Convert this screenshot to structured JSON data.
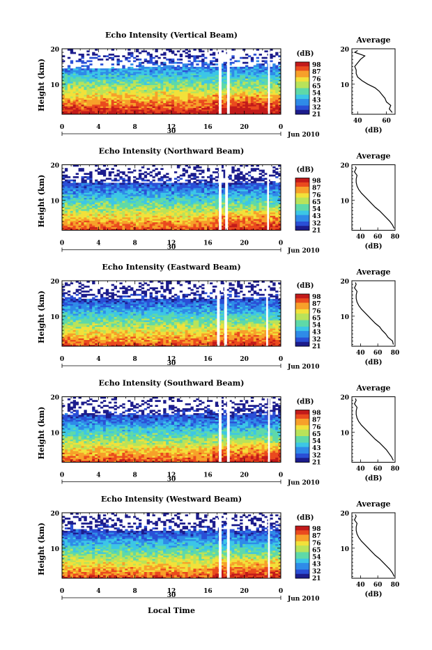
{
  "shared": {
    "x_tick_labels": [
      "0",
      "4",
      "8",
      "12",
      "16",
      "20",
      "0"
    ],
    "date_day": "30",
    "date_month_year": "Jun 2010",
    "y_axis_label": "Height (km)",
    "y_tick_labels": [
      "20",
      "10"
    ],
    "colorbar_unit": "(dB)",
    "colorbar_labels": [
      "98",
      "87",
      "76",
      "65",
      "54",
      "43",
      "32",
      "21"
    ],
    "colorbar_labels_east": [
      "98",
      "87",
      "76",
      "65",
      "54",
      "43",
      "32",
      "21"
    ],
    "average_title": "Average",
    "average_unit": "(dB)",
    "x_axis_label": "Local Time"
  },
  "colors": {
    "colormap": [
      "#1c1c8c",
      "#2a4fd6",
      "#2f8be8",
      "#3cc6e6",
      "#5fd9a8",
      "#b9e35a",
      "#f2e13a",
      "#f7a02a",
      "#ea4a1e",
      "#c21a1a"
    ]
  },
  "chart_data": [
    {
      "type": "heatmap",
      "title": "Echo Intensity (Vertical Beam)",
      "xlabel": "",
      "ylabel": "Height (km)",
      "xlim": [
        0,
        24
      ],
      "ylim": [
        1.5,
        20
      ],
      "x_ticks": [
        0,
        4,
        8,
        12,
        16,
        20,
        24
      ],
      "y_ticks": [
        10,
        20
      ],
      "colorbar": {
        "label": "(dB)",
        "range": [
          21,
          98
        ],
        "tick_labels": [
          "98",
          "87",
          "76",
          "65",
          "54",
          "43",
          "32",
          "21"
        ]
      },
      "data_gaps_hours": [
        [
          17.2,
          17.5
        ],
        [
          18.1,
          18.4
        ],
        [
          22.6,
          22.8
        ]
      ],
      "average_profile": {
        "xlim": [
          36,
          66
        ],
        "x_ticks": [
          40,
          60
        ],
        "x_tick_labels": [
          "40",
          "60"
        ],
        "ylim": [
          1.5,
          20
        ],
        "height_km": [
          2,
          3,
          4,
          5,
          6,
          7,
          8,
          9,
          10,
          11,
          12,
          13,
          14,
          15,
          16,
          17,
          18,
          19,
          19.5
        ],
        "db": [
          64,
          62,
          63,
          60,
          59,
          57,
          55,
          52,
          47,
          43,
          40,
          39,
          39,
          38,
          40,
          42,
          45,
          38,
          40
        ]
      }
    },
    {
      "type": "heatmap",
      "title": "Echo Intensity (Northward Beam)",
      "xlabel": "",
      "ylabel": "Height (km)",
      "xlim": [
        0,
        24
      ],
      "ylim": [
        1.5,
        20
      ],
      "x_ticks": [
        0,
        4,
        8,
        12,
        16,
        20,
        24
      ],
      "y_ticks": [
        10,
        20
      ],
      "colorbar": {
        "label": "(dB)",
        "range": [
          21,
          98
        ],
        "tick_labels": [
          "98",
          "87",
          "76",
          "65",
          "54",
          "43",
          "32",
          "21"
        ]
      },
      "data_gaps_hours": [
        [
          17.2,
          17.5
        ],
        [
          17.9,
          18.2
        ],
        [
          22.5,
          22.7
        ]
      ],
      "average_profile": {
        "xlim": [
          30,
          80
        ],
        "x_ticks": [
          40,
          60,
          80
        ],
        "x_tick_labels": [
          "40",
          "60",
          "80"
        ],
        "ylim": [
          1.5,
          20
        ],
        "height_km": [
          2,
          3,
          4,
          5,
          6,
          7,
          8,
          9,
          10,
          11,
          12,
          13,
          14,
          15,
          16,
          17,
          18,
          19,
          19.5
        ],
        "db": [
          79,
          77,
          74,
          70,
          66,
          62,
          57,
          53,
          49,
          45,
          41,
          38,
          36,
          35,
          35,
          36,
          33,
          35,
          34
        ]
      }
    },
    {
      "type": "heatmap",
      "title": "Echo Intensity (Eastward Beam)",
      "xlabel": "",
      "ylabel": "Height (km)",
      "xlim": [
        0,
        24
      ],
      "ylim": [
        1.5,
        20
      ],
      "x_ticks": [
        0,
        4,
        8,
        12,
        16,
        20,
        24
      ],
      "y_ticks": [
        10,
        20
      ],
      "colorbar": {
        "label": "(dB)",
        "range": [
          21,
          98
        ],
        "tick_labels": [
          "98",
          "87",
          "76",
          "65",
          "54",
          "43",
          "32",
          "21"
        ]
      },
      "data_gaps_hours": [
        [
          17.0,
          17.3
        ],
        [
          17.8,
          18.1
        ],
        [
          22.4,
          22.6
        ]
      ],
      "average_profile": {
        "xlim": [
          30,
          80
        ],
        "x_ticks": [
          40,
          60,
          80
        ],
        "x_tick_labels": [
          "40",
          "60",
          "80"
        ],
        "ylim": [
          1.5,
          20
        ],
        "height_km": [
          2,
          3,
          4,
          5,
          6,
          7,
          8,
          9,
          10,
          11,
          12,
          13,
          14,
          15,
          16,
          17,
          18,
          19,
          19.5
        ],
        "db": [
          78,
          77,
          72,
          69,
          65,
          62,
          57,
          53,
          49,
          45,
          41,
          38,
          36,
          35,
          35,
          36,
          33,
          35,
          34
        ]
      }
    },
    {
      "type": "heatmap",
      "title": "Echo Intensity (Southward Beam)",
      "xlabel": "",
      "ylabel": "Height (km)",
      "xlim": [
        0,
        24
      ],
      "ylim": [
        1.5,
        20
      ],
      "x_ticks": [
        0,
        4,
        8,
        12,
        16,
        20,
        24
      ],
      "y_ticks": [
        10,
        20
      ],
      "colorbar": {
        "label": "(dB)",
        "range": [
          21,
          98
        ],
        "tick_labels": [
          "98",
          "87",
          "76",
          "65",
          "54",
          "43",
          "32",
          "21"
        ]
      },
      "data_gaps_hours": [
        [
          17.2,
          17.5
        ],
        [
          18.1,
          18.4
        ],
        [
          22.6,
          22.8
        ]
      ],
      "average_profile": {
        "xlim": [
          30,
          80
        ],
        "x_ticks": [
          40,
          60,
          80
        ],
        "x_tick_labels": [
          "40",
          "60",
          "80"
        ],
        "ylim": [
          1.5,
          20
        ],
        "height_km": [
          2,
          3,
          4,
          5,
          6,
          7,
          8,
          9,
          10,
          11,
          12,
          13,
          14,
          15,
          16,
          17,
          18,
          19,
          19.5
        ],
        "db": [
          78,
          76,
          73,
          70,
          66,
          62,
          57,
          53,
          49,
          45,
          41,
          38,
          36,
          35,
          35,
          36,
          33,
          35,
          34
        ]
      }
    },
    {
      "type": "heatmap",
      "title": "Echo Intensity (Westward Beam)",
      "xlabel": "Local Time",
      "ylabel": "Height (km)",
      "xlim": [
        0,
        24
      ],
      "ylim": [
        1.5,
        20
      ],
      "x_ticks": [
        0,
        4,
        8,
        12,
        16,
        20,
        24
      ],
      "y_ticks": [
        10,
        20
      ],
      "colorbar": {
        "label": "(dB)",
        "range": [
          21,
          98
        ],
        "tick_labels": [
          "98",
          "87",
          "76",
          "65",
          "54",
          "43",
          "32",
          "21"
        ]
      },
      "data_gaps_hours": [
        [
          17.2,
          17.5
        ],
        [
          18.1,
          18.4
        ],
        [
          22.6,
          22.8
        ]
      ],
      "average_profile": {
        "xlim": [
          30,
          80
        ],
        "x_ticks": [
          40,
          60,
          80
        ],
        "x_tick_labels": [
          "40",
          "60",
          "80"
        ],
        "ylim": [
          1.5,
          20
        ],
        "height_km": [
          2,
          3,
          4,
          5,
          6,
          7,
          8,
          9,
          10,
          11,
          12,
          13,
          14,
          15,
          16,
          17,
          18,
          19,
          19.5
        ],
        "db": [
          79,
          77,
          74,
          70,
          66,
          62,
          57,
          53,
          49,
          45,
          41,
          38,
          36,
          35,
          35,
          36,
          33,
          35,
          34
        ]
      }
    }
  ]
}
